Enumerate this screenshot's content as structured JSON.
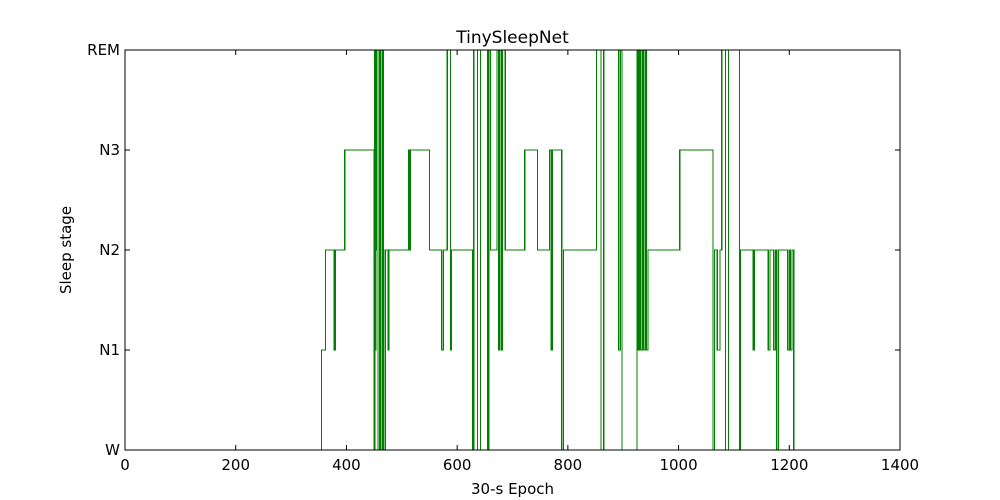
{
  "chart_data": {
    "type": "line",
    "step": true,
    "title": "TinySleepNet",
    "xlabel": "30-s Epoch",
    "ylabel": "Sleep stage",
    "xlim": [
      0,
      1400
    ],
    "ylim": [
      0,
      4
    ],
    "xticks": [
      0,
      200,
      400,
      600,
      800,
      1000,
      1200,
      1400
    ],
    "yticks": [
      {
        "value": 0,
        "label": "W"
      },
      {
        "value": 1,
        "label": "N1"
      },
      {
        "value": 2,
        "label": "N2"
      },
      {
        "value": 3,
        "label": "N3"
      },
      {
        "value": 4,
        "label": "REM"
      }
    ],
    "grid": false,
    "legend": "none",
    "series": [
      {
        "color": "#007f00",
        "x": [
          0,
          355,
          358,
          362,
          372,
          378,
          380,
          385,
          395,
          397,
          405,
          448,
          450,
          451,
          452,
          453,
          454,
          455,
          457,
          460,
          462,
          465,
          467,
          470,
          472,
          475,
          477,
          480,
          510,
          512,
          514,
          516,
          520,
          548,
          550,
          570,
          572,
          575,
          577,
          582,
          584,
          588,
          590,
          592,
          594,
          628,
          630,
          635,
          637,
          642,
          650,
          652,
          655,
          657,
          660,
          670,
          672,
          675,
          677,
          680,
          682,
          685,
          687,
          690,
          720,
          722,
          725,
          727,
          745,
          747,
          765,
          767,
          770,
          772,
          787,
          789,
          792,
          795,
          850,
          852,
          855,
          860,
          862,
          865,
          890,
          892,
          895,
          898,
          925,
          927,
          930,
          932,
          935,
          937,
          940,
          942,
          945,
          947,
          950,
          1000,
          1002,
          1005,
          1060,
          1062,
          1065,
          1070,
          1075,
          1078,
          1082,
          1085,
          1090,
          1100,
          1110,
          1112,
          1115,
          1135,
          1137,
          1160,
          1162,
          1165,
          1172,
          1175,
          1177,
          1180,
          1195,
          1197,
          1200,
          1202,
          1205,
          1208,
          1212,
          1215,
          1220,
          1272
        ],
        "y": [
          0,
          1,
          1,
          2,
          2,
          1,
          2,
          2,
          2,
          3,
          3,
          3,
          0,
          4,
          1,
          2,
          4,
          4,
          0,
          4,
          0,
          4,
          0,
          2,
          2,
          1,
          2,
          2,
          2,
          3,
          2,
          3,
          3,
          3,
          2,
          2,
          1,
          2,
          2,
          4,
          4,
          1,
          2,
          2,
          2,
          0,
          4,
          4,
          0,
          4,
          4,
          4,
          0,
          4,
          2,
          2,
          4,
          1,
          4,
          1,
          4,
          4,
          2,
          2,
          2,
          3,
          3,
          3,
          2,
          2,
          2,
          3,
          1,
          3,
          3,
          0,
          2,
          2,
          2,
          4,
          4,
          0,
          0,
          4,
          4,
          1,
          4,
          0,
          4,
          1,
          4,
          1,
          4,
          1,
          4,
          1,
          2,
          2,
          2,
          2,
          3,
          3,
          3,
          0,
          2,
          1,
          2,
          4,
          4,
          0,
          4,
          4,
          0,
          2,
          2,
          1,
          2,
          2,
          1,
          2,
          1,
          2,
          0,
          2,
          2,
          1,
          2,
          1,
          2,
          0,
          0,
          0,
          0,
          0
        ]
      }
    ]
  }
}
